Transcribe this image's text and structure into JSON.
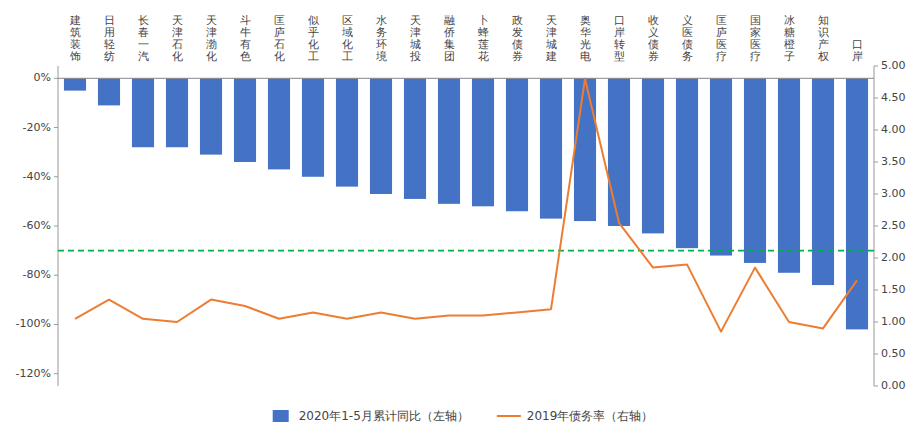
{
  "chart_data": {
    "type": "bar",
    "categories": [
      "建筑装饰",
      "日用轻纺",
      "长春一汽",
      "天津石化",
      "天津渤化",
      "斗牛有色",
      "匡庐石化",
      "似乎化工",
      "区域化工",
      "水务环境",
      "天津城投",
      "融侨集团",
      "卜蜂莲花",
      "政发债券",
      "天津城建",
      "奥华光电",
      "口岸转型",
      "收义债券",
      "义医债务",
      "匡庐医疗",
      "国家医疗",
      "冰糖橙子",
      "知识产权",
      "口岸"
    ],
    "series": [
      {
        "name": "2020年1-5月累计同比（左轴）",
        "type": "bar",
        "color": "#4472C4",
        "values": [
          -5,
          -11,
          -28,
          -28,
          -31,
          -34,
          -37,
          -40,
          -44,
          -47,
          -49,
          -51,
          -52,
          -54,
          -57,
          -58,
          -60,
          -63,
          -69,
          -72,
          -75,
          -79,
          -84,
          -102
        ]
      },
      {
        "name": "2019年债务率（右轴）",
        "type": "line",
        "axis": "y2",
        "color": "#ED7D31",
        "values": [
          1.05,
          1.35,
          1.05,
          1.0,
          1.35,
          1.25,
          1.05,
          1.15,
          1.05,
          1.15,
          1.05,
          1.1,
          1.1,
          1.15,
          1.2,
          4.8,
          2.55,
          1.85,
          1.9,
          0.85,
          1.85,
          1.0,
          0.9,
          1.65
        ]
      }
    ],
    "ylim": [
      -125,
      5
    ],
    "yticks": [
      {
        "value": 0,
        "label": "0%"
      },
      {
        "value": -20,
        "label": "-20%"
      },
      {
        "value": -40,
        "label": "-40%"
      },
      {
        "value": -60,
        "label": "-60%"
      },
      {
        "value": -80,
        "label": "-80%"
      },
      {
        "value": -100,
        "label": "-100%"
      },
      {
        "value": -120,
        "label": "-120%"
      }
    ],
    "y2lim": [
      0,
      5.0
    ],
    "y2ticks": [
      {
        "value": 0.0,
        "label": "0.00"
      },
      {
        "value": 0.5,
        "label": "0.50"
      },
      {
        "value": 1.0,
        "label": "1.00"
      },
      {
        "value": 1.5,
        "label": "1.50"
      },
      {
        "value": 2.0,
        "label": "2.00"
      },
      {
        "value": 2.5,
        "label": "2.50"
      },
      {
        "value": 3.0,
        "label": "3.00"
      },
      {
        "value": 3.5,
        "label": "3.50"
      },
      {
        "value": 4.0,
        "label": "4.00"
      },
      {
        "value": 4.5,
        "label": "4.50"
      },
      {
        "value": 5.0,
        "label": "5.00"
      }
    ],
    "reference_line": {
      "value": -70,
      "color": "#00B050",
      "line_style": "dashed"
    },
    "grid": false,
    "legend": "bottom"
  }
}
